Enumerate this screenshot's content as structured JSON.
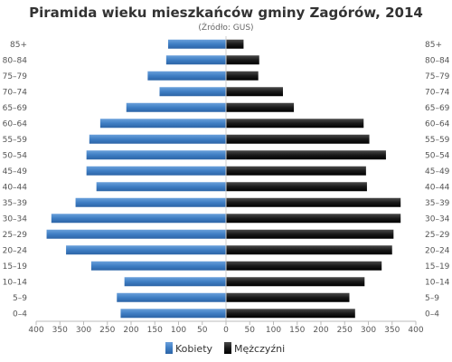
{
  "chart_data": {
    "type": "bar",
    "orientation": "horizontal-population-pyramid",
    "title": "Piramida wieku mieszkańców gminy Zagórów, 2014",
    "subtitle": "(Źródło: GUS)",
    "categories": [
      "85+",
      "80–84",
      "75–79",
      "70–74",
      "65–69",
      "60–64",
      "55–59",
      "50–54",
      "45–49",
      "40–44",
      "35–39",
      "30–34",
      "25–29",
      "20–24",
      "15–19",
      "10–14",
      "5–9",
      "0–4"
    ],
    "xlim": [
      -400,
      400
    ],
    "xticks": [
      "400",
      "350",
      "300",
      "250",
      "200",
      "150",
      "100",
      "50",
      "0",
      "50",
      "100",
      "150",
      "200",
      "250",
      "300",
      "350",
      "400"
    ],
    "grid": false,
    "legend_position": "bottom",
    "series": [
      {
        "name": "Kobiety",
        "side": "left",
        "color": "#3f7ec4",
        "values": [
          122,
          126,
          165,
          140,
          210,
          265,
          288,
          294,
          294,
          273,
          317,
          368,
          378,
          337,
          284,
          214,
          230,
          222
        ]
      },
      {
        "name": "Mężczyźni",
        "side": "right",
        "color": "#1a1a1a",
        "values": [
          37,
          70,
          68,
          120,
          143,
          290,
          302,
          337,
          295,
          297,
          368,
          368,
          353,
          350,
          328,
          292,
          260,
          272
        ]
      }
    ]
  }
}
